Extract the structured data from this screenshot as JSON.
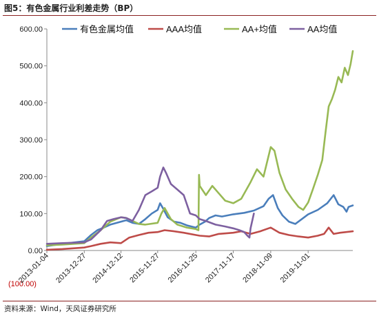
{
  "figure": {
    "title": "图5：有色金属行业利差走势（BP）",
    "source": "资料来源：Wind，天风证券研究所"
  },
  "colors": {
    "series_1": "#4a7ebb",
    "series_2": "#be4b48",
    "series_3": "#98b954",
    "series_4": "#7d60a0",
    "axis": "#888888",
    "accent": "#8a1f1f",
    "negative_tick": "#c00000"
  },
  "chart_data": {
    "type": "line",
    "title": "",
    "xlabel": "",
    "ylabel": "",
    "x_start": "2013-01-04",
    "x_end": "2020-12-31",
    "x_ticks": [
      "2013-01-04",
      "2013-12-27",
      "2014-12-12",
      "2015-11-27",
      "2016-11-25",
      "2017-11-17",
      "2018-11-09",
      "2019-11-01"
    ],
    "ylim": [
      -100,
      600
    ],
    "y_ticks": [
      -100,
      0,
      100,
      200,
      300,
      400,
      500,
      600
    ],
    "y_tick_labels": [
      "(100.00)",
      "0.00",
      "100.00",
      "200.00",
      "300.00",
      "400.00",
      "500.00",
      "600.00"
    ],
    "grid": false,
    "legend_position": "top",
    "series": [
      {
        "name": "有色金属均值",
        "points": [
          [
            "2013-01-04",
            12
          ],
          [
            "2013-06-01",
            18
          ],
          [
            "2013-12-27",
            25
          ],
          [
            "2014-03-01",
            42
          ],
          [
            "2014-05-01",
            55
          ],
          [
            "2014-07-01",
            62
          ],
          [
            "2014-09-01",
            70
          ],
          [
            "2014-12-12",
            78
          ],
          [
            "2015-02-01",
            82
          ],
          [
            "2015-04-01",
            75
          ],
          [
            "2015-06-01",
            72
          ],
          [
            "2015-08-01",
            85
          ],
          [
            "2015-10-01",
            100
          ],
          [
            "2015-11-27",
            110
          ],
          [
            "2015-12-20",
            128
          ],
          [
            "2016-01-15",
            115
          ],
          [
            "2016-03-01",
            90
          ],
          [
            "2016-05-01",
            78
          ],
          [
            "2016-07-01",
            75
          ],
          [
            "2016-09-01",
            68
          ],
          [
            "2016-11-25",
            62
          ],
          [
            "2017-01-01",
            70
          ],
          [
            "2017-02-20",
            78
          ],
          [
            "2017-04-01",
            88
          ],
          [
            "2017-06-01",
            95
          ],
          [
            "2017-08-01",
            92
          ],
          [
            "2017-11-17",
            98
          ],
          [
            "2018-03-01",
            102
          ],
          [
            "2018-06-01",
            108
          ],
          [
            "2018-09-01",
            120
          ],
          [
            "2018-10-20",
            140
          ],
          [
            "2018-12-01",
            150
          ],
          [
            "2019-01-15",
            115
          ],
          [
            "2019-03-01",
            95
          ],
          [
            "2019-05-01",
            78
          ],
          [
            "2019-07-01",
            72
          ],
          [
            "2019-09-01",
            85
          ],
          [
            "2019-11-01",
            98
          ],
          [
            "2020-02-01",
            110
          ],
          [
            "2020-05-01",
            128
          ],
          [
            "2020-07-01",
            150
          ],
          [
            "2020-08-15",
            125
          ],
          [
            "2020-10-01",
            118
          ],
          [
            "2020-11-01",
            105
          ],
          [
            "2020-11-20",
            118
          ],
          [
            "2020-12-31",
            122
          ]
        ]
      },
      {
        "name": "AAA均值",
        "points": [
          [
            "2013-01-04",
            2
          ],
          [
            "2013-06-01",
            4
          ],
          [
            "2013-12-27",
            8
          ],
          [
            "2014-03-01",
            12
          ],
          [
            "2014-06-01",
            18
          ],
          [
            "2014-09-01",
            22
          ],
          [
            "2014-12-12",
            20
          ],
          [
            "2015-03-01",
            35
          ],
          [
            "2015-06-01",
            42
          ],
          [
            "2015-09-01",
            48
          ],
          [
            "2015-11-27",
            50
          ],
          [
            "2016-02-01",
            55
          ],
          [
            "2016-05-01",
            52
          ],
          [
            "2016-08-01",
            48
          ],
          [
            "2016-11-25",
            42
          ],
          [
            "2017-01-01",
            40
          ],
          [
            "2017-04-01",
            38
          ],
          [
            "2017-07-01",
            45
          ],
          [
            "2017-11-17",
            48
          ],
          [
            "2018-02-01",
            52
          ],
          [
            "2018-05-01",
            45
          ],
          [
            "2018-08-01",
            52
          ],
          [
            "2018-11-09",
            62
          ],
          [
            "2019-02-01",
            48
          ],
          [
            "2019-05-01",
            42
          ],
          [
            "2019-08-01",
            38
          ],
          [
            "2019-11-01",
            35
          ],
          [
            "2020-02-01",
            40
          ],
          [
            "2020-04-01",
            45
          ],
          [
            "2020-05-15",
            62
          ],
          [
            "2020-07-01",
            45
          ],
          [
            "2020-09-01",
            48
          ],
          [
            "2020-12-31",
            52
          ]
        ]
      },
      {
        "name": "AA+均值",
        "points": [
          [
            "2013-01-04",
            14
          ],
          [
            "2013-06-01",
            16
          ],
          [
            "2013-12-27",
            20
          ],
          [
            "2014-03-01",
            35
          ],
          [
            "2014-06-01",
            55
          ],
          [
            "2014-09-01",
            78
          ],
          [
            "2014-12-12",
            90
          ],
          [
            "2015-02-01",
            88
          ],
          [
            "2015-04-01",
            80
          ],
          [
            "2015-06-01",
            72
          ],
          [
            "2015-08-01",
            70
          ],
          [
            "2015-11-27",
            75
          ],
          [
            "2016-01-01",
            100
          ],
          [
            "2016-02-01",
            115
          ],
          [
            "2016-04-01",
            85
          ],
          [
            "2016-06-01",
            70
          ],
          [
            "2016-09-01",
            62
          ],
          [
            "2016-11-25",
            58
          ],
          [
            "2016-12-20",
            55
          ],
          [
            "2016-12-25",
            205
          ],
          [
            "2017-01-01",
            175
          ],
          [
            "2017-03-01",
            150
          ],
          [
            "2017-05-01",
            175
          ],
          [
            "2017-07-01",
            155
          ],
          [
            "2017-09-01",
            135
          ],
          [
            "2017-11-17",
            128
          ],
          [
            "2018-02-01",
            140
          ],
          [
            "2018-05-01",
            185
          ],
          [
            "2018-07-01",
            220
          ],
          [
            "2018-09-01",
            200
          ],
          [
            "2018-11-09",
            280
          ],
          [
            "2018-12-15",
            270
          ],
          [
            "2019-02-01",
            210
          ],
          [
            "2019-04-01",
            165
          ],
          [
            "2019-06-01",
            140
          ],
          [
            "2019-08-01",
            118
          ],
          [
            "2019-09-15",
            110
          ],
          [
            "2019-11-01",
            130
          ],
          [
            "2019-12-15",
            165
          ],
          [
            "2020-02-01",
            205
          ],
          [
            "2020-03-15",
            245
          ],
          [
            "2020-04-15",
            320
          ],
          [
            "2020-05-15",
            390
          ],
          [
            "2020-06-15",
            410
          ],
          [
            "2020-07-15",
            435
          ],
          [
            "2020-08-15",
            470
          ],
          [
            "2020-09-15",
            455
          ],
          [
            "2020-10-15",
            495
          ],
          [
            "2020-11-15",
            475
          ],
          [
            "2020-12-10",
            505
          ],
          [
            "2020-12-31",
            540
          ]
        ]
      },
      {
        "name": "AA均值",
        "points": [
          [
            "2013-01-04",
            18
          ],
          [
            "2013-06-01",
            20
          ],
          [
            "2013-12-27",
            22
          ],
          [
            "2014-03-01",
            30
          ],
          [
            "2014-06-01",
            55
          ],
          [
            "2014-08-01",
            80
          ],
          [
            "2014-10-01",
            85
          ],
          [
            "2014-12-12",
            90
          ],
          [
            "2015-02-01",
            88
          ],
          [
            "2015-04-01",
            80
          ],
          [
            "2015-06-01",
            110
          ],
          [
            "2015-08-01",
            150
          ],
          [
            "2015-10-01",
            160
          ],
          [
            "2015-11-27",
            170
          ],
          [
            "2015-12-20",
            200
          ],
          [
            "2016-01-20",
            225
          ],
          [
            "2016-02-15",
            210
          ],
          [
            "2016-04-01",
            180
          ],
          [
            "2016-06-01",
            165
          ],
          [
            "2016-08-01",
            150
          ],
          [
            "2016-10-01",
            100
          ],
          [
            "2016-11-25",
            95
          ],
          [
            "2017-01-01",
            85
          ],
          [
            "2017-03-01",
            80
          ],
          [
            "2017-06-01",
            70
          ],
          [
            "2017-09-01",
            65
          ],
          [
            "2017-11-17",
            60
          ],
          [
            "2018-01-15",
            55
          ],
          [
            "2018-03-01",
            50
          ],
          [
            "2018-04-01",
            40
          ],
          [
            "2018-04-20",
            35
          ],
          [
            "2018-05-01",
            60
          ],
          [
            "2018-06-01",
            100
          ]
        ]
      }
    ]
  }
}
